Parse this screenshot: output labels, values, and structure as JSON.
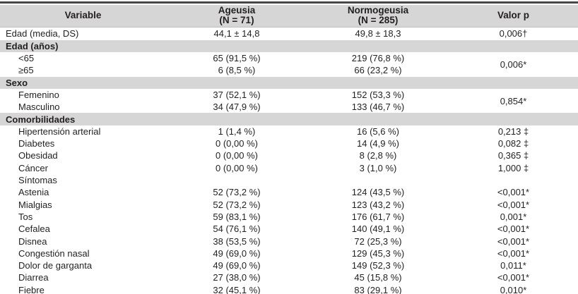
{
  "colors": {
    "section_band": "#d6d6d6",
    "header_band": "#d6d6d6",
    "rule": "#474747",
    "text": "#231f20"
  },
  "header": {
    "variable": "Variable",
    "ageusia_line1": "Ageusia",
    "ageusia_line2": "(N = 71)",
    "normogeusia_line1": "Normogeusia",
    "normogeusia_line2": "(N = 285)",
    "valor_p": "Valor p"
  },
  "rows": [
    {
      "label": "Edad (media, DS)",
      "ageusia": "44,1 ± 14,8",
      "normogeusia": "49,8 ± 18,3",
      "p": "0,006†"
    },
    {
      "label": "Edad (años)",
      "section": true
    },
    {
      "label": "<65",
      "ageusia": "65 (91,5 %)",
      "normogeusia": "219 (76,8 %)",
      "p": "0,006*"
    },
    {
      "label": "≥65",
      "ageusia": "6 (8,5 %)",
      "normogeusia": "66 (23,2 %)"
    },
    {
      "label": "Sexo",
      "section": true
    },
    {
      "label": "Femenino",
      "ageusia": "37 (52,1 %)",
      "normogeusia": "152 (53,3 %)",
      "p": "0,854*"
    },
    {
      "label": "Masculino",
      "ageusia": "34 (47,9 %)",
      "normogeusia": "133 (46,7 %)"
    },
    {
      "label": "Comorbilidades",
      "section": true
    },
    {
      "label": "Hipertensión arterial",
      "ageusia": "1 (1,4 %)",
      "normogeusia": "16 (5,6 %)",
      "p": "0,213 ‡"
    },
    {
      "label": "Diabetes",
      "ageusia": "0 (0,00 %)",
      "normogeusia": "14 (4,9 %)",
      "p": "0,082 ‡"
    },
    {
      "label": "Obesidad",
      "ageusia": "0 (0,00 %)",
      "normogeusia": "8 (2,8 %)",
      "p": "0,365 ‡"
    },
    {
      "label": "Cáncer",
      "ageusia": "0 (0,00 %)",
      "normogeusia": "3 (1,0 %)",
      "p": "1,000 ‡"
    },
    {
      "label": "Síntomas",
      "ageusia": "",
      "normogeusia": "",
      "p": ""
    },
    {
      "label": "Astenia",
      "ageusia": "52 (73,2 %)",
      "normogeusia": "124 (43,5 %)",
      "p": "<0,001*"
    },
    {
      "label": "Mialgias",
      "ageusia": "52 (73,2 %)",
      "normogeusia": "123 (43,2 %)",
      "p": "<0,001*"
    },
    {
      "label": "Tos",
      "ageusia": "59 (83,1 %)",
      "normogeusia": "176 (61,7 %)",
      "p": "0,001*"
    },
    {
      "label": "Cefalea",
      "ageusia": "54 (76,1 %)",
      "normogeusia": "140 (49,1 %)",
      "p": "<0,001*"
    },
    {
      "label": "Disnea",
      "ageusia": "38 (53,5 %)",
      "normogeusia": "72 (25,3 %)",
      "p": "<0,001*"
    },
    {
      "label": "Congestión nasal",
      "ageusia": "49 (69,0 %)",
      "normogeusia": "129 (45,3 %)",
      "p": "<0,001*"
    },
    {
      "label": "Dolor de garganta",
      "ageusia": "49 (69,0 %)",
      "normogeusia": "149 (52,3 %)",
      "p": "0,011*"
    },
    {
      "label": "Diarrea",
      "ageusia": "27 (38,0 %)",
      "normogeusia": "45 (15,8 %)",
      "p": "<0,001*"
    },
    {
      "label": "Fiebre",
      "ageusia": "32 (45,1 %)",
      "normogeusia": "83 (29,1 %)",
      "p": "0,010*"
    }
  ]
}
